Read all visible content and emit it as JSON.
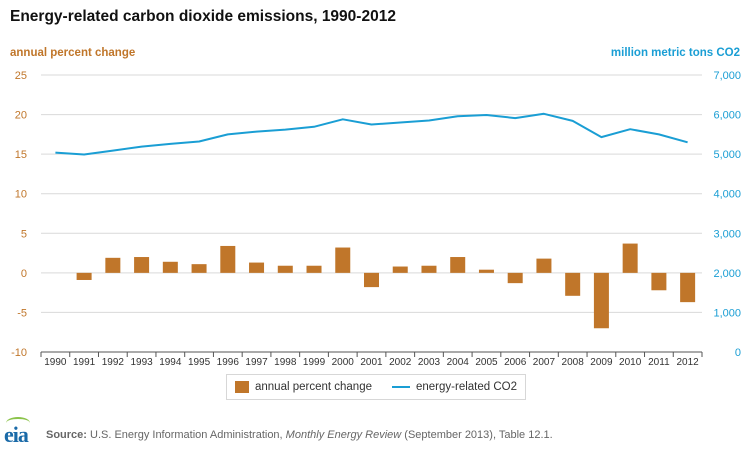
{
  "chart_data": {
    "type": "bar",
    "title": "Energy-related carbon dioxide emissions, 1990-2012",
    "y_left_label": "annual percent change",
    "y_right_label": "million metric tons CO2",
    "ylim_left": [
      -10,
      25
    ],
    "ylim_right": [
      0,
      7000
    ],
    "y_left_ticks": [
      "-10",
      "-5",
      "0",
      "5",
      "10",
      "15",
      "20",
      "25"
    ],
    "y_right_ticks": [
      "0",
      "1,000",
      "2,000",
      "3,000",
      "4,000",
      "5,000",
      "6,000",
      "7,000"
    ],
    "categories": [
      "1990",
      "1991",
      "1992",
      "1993",
      "1994",
      "1995",
      "1996",
      "1997",
      "1998",
      "1999",
      "2000",
      "2001",
      "2002",
      "2003",
      "2004",
      "2005",
      "2006",
      "2007",
      "2008",
      "2009",
      "2010",
      "2011",
      "2012"
    ],
    "grid": true,
    "legend_position": "bottom",
    "series": [
      {
        "name": "annual percent change",
        "type": "bar",
        "axis": "left",
        "color": "#c0762a",
        "values": [
          null,
          -0.9,
          1.9,
          2.0,
          1.4,
          1.1,
          3.4,
          1.3,
          0.9,
          0.9,
          3.2,
          -1.8,
          0.8,
          0.9,
          2.0,
          0.4,
          -1.3,
          1.8,
          -2.9,
          -7.0,
          3.7,
          -2.2,
          -3.7
        ]
      },
      {
        "name": "energy-related CO2",
        "type": "line",
        "axis": "right",
        "color": "#1a9ed4",
        "values": [
          5040,
          4990,
          5090,
          5190,
          5260,
          5320,
          5500,
          5570,
          5620,
          5690,
          5880,
          5750,
          5800,
          5850,
          5960,
          5990,
          5910,
          6020,
          5840,
          5430,
          5630,
          5500,
          5300
        ]
      }
    ]
  },
  "footer": {
    "logo_text": "eia",
    "source_label": "Source:",
    "source_pre": " U.S. Energy Information Administration, ",
    "source_italic": "Monthly Energy Review",
    "source_post": " (September 2013), Table 12.1."
  }
}
